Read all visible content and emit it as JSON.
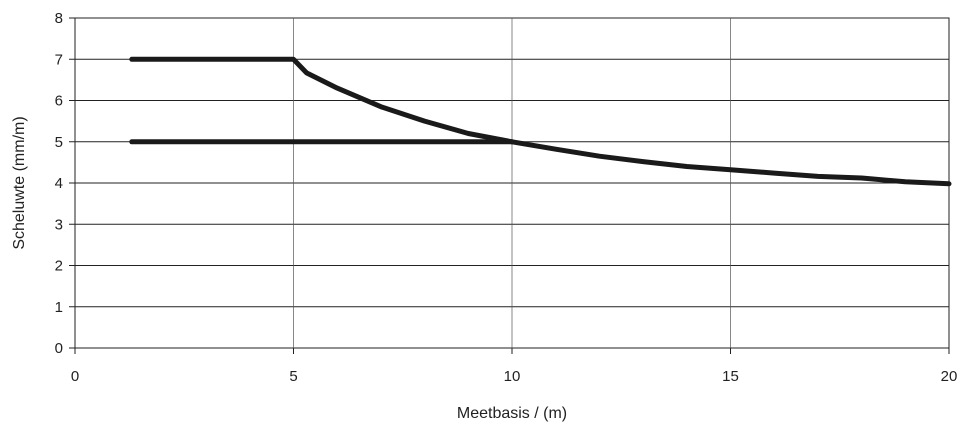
{
  "chart_data": {
    "type": "line",
    "title": "",
    "xlabel": "Meetbasis / (m)",
    "ylabel": "Scheluwte (mm/m)",
    "xlim": [
      0,
      20
    ],
    "ylim": [
      0,
      8
    ],
    "xticks": [
      0,
      5,
      10,
      15,
      20
    ],
    "yticks": [
      0,
      1,
      2,
      3,
      4,
      5,
      6,
      7,
      8
    ],
    "grid": true,
    "legend": "none",
    "line_color": "#1a1a1a",
    "series": [
      {
        "values": [
          [
            1.3,
            7
          ],
          [
            5,
            7
          ],
          [
            5.3,
            6.67
          ],
          [
            6,
            6.3
          ],
          [
            7,
            5.85
          ],
          [
            8,
            5.5
          ],
          [
            9,
            5.2
          ],
          [
            10,
            5.0
          ],
          [
            11,
            4.82
          ],
          [
            12,
            4.65
          ],
          [
            13,
            4.52
          ],
          [
            14,
            4.4
          ],
          [
            15,
            4.32
          ],
          [
            16,
            4.24
          ],
          [
            17,
            4.16
          ],
          [
            18,
            4.12
          ],
          [
            19,
            4.03
          ],
          [
            20,
            3.98
          ]
        ]
      },
      {
        "values": [
          [
            1.3,
            5
          ],
          [
            10,
            5
          ]
        ]
      }
    ]
  }
}
